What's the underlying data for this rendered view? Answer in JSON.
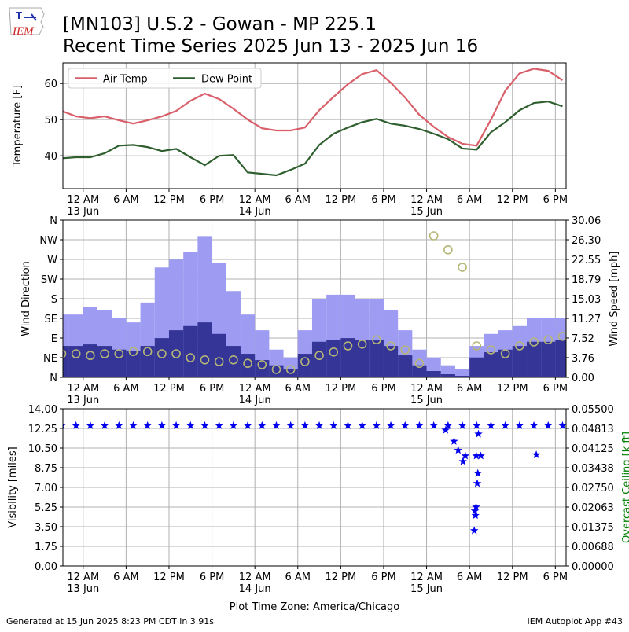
{
  "logo_text": "IEM",
  "title": [
    "[MN103] U.S.2 - Gowan - MP 225.1",
    "Recent Time Series 2025 Jun 13 - 2025 Jun 16"
  ],
  "x_axis_label": "Plot Time Zone: America/Chicago",
  "footer_left": "Generated at 15 Jun 2025 8:23 PM CDT in 3.91s",
  "footer_right": "IEM Autoplot App #43",
  "chart_data": [
    {
      "type": "line",
      "ylabel": "Temperature [F]",
      "grid": true,
      "legend": "upper left",
      "xlim": [
        "2025-06-12 21:10",
        "2025-06-15 19:30"
      ],
      "xticks": [
        {
          "value": "2025-06-13 00:00",
          "label": "12 AM\n13 Jun"
        },
        {
          "value": "2025-06-13 06:00",
          "label": "6 AM"
        },
        {
          "value": "2025-06-13 12:00",
          "label": "12 PM"
        },
        {
          "value": "2025-06-13 18:00",
          "label": "6 PM"
        },
        {
          "value": "2025-06-14 00:00",
          "label": "12 AM\n14 Jun"
        },
        {
          "value": "2025-06-14 06:00",
          "label": "6 AM"
        },
        {
          "value": "2025-06-14 12:00",
          "label": "12 PM"
        },
        {
          "value": "2025-06-14 18:00",
          "label": "6 PM"
        },
        {
          "value": "2025-06-15 00:00",
          "label": "12 AM\n15 Jun"
        },
        {
          "value": "2025-06-15 06:00",
          "label": "6 AM"
        },
        {
          "value": "2025-06-15 12:00",
          "label": "12 PM"
        },
        {
          "value": "2025-06-15 18:00",
          "label": "6 PM"
        }
      ],
      "ylim": [
        30.9,
        65.7
      ],
      "yticks": [
        40,
        50,
        60
      ],
      "x": [
        "2025-06-12 21:00",
        "2025-06-12 23:00",
        "2025-06-13 01:00",
        "2025-06-13 03:00",
        "2025-06-13 05:00",
        "2025-06-13 07:00",
        "2025-06-13 09:00",
        "2025-06-13 11:00",
        "2025-06-13 13:00",
        "2025-06-13 15:00",
        "2025-06-13 17:00",
        "2025-06-13 19:00",
        "2025-06-13 21:00",
        "2025-06-13 23:00",
        "2025-06-14 01:00",
        "2025-06-14 03:00",
        "2025-06-14 05:00",
        "2025-06-14 07:00",
        "2025-06-14 09:00",
        "2025-06-14 11:00",
        "2025-06-14 13:00",
        "2025-06-14 15:00",
        "2025-06-14 17:00",
        "2025-06-14 19:00",
        "2025-06-14 21:00",
        "2025-06-14 23:00",
        "2025-06-15 01:00",
        "2025-06-15 03:00",
        "2025-06-15 05:00",
        "2025-06-15 07:00",
        "2025-06-15 09:00",
        "2025-06-15 11:00",
        "2025-06-15 13:00",
        "2025-06-15 15:00",
        "2025-06-15 17:00",
        "2025-06-15 19:00"
      ],
      "series": [
        {
          "name": "Air Temp",
          "color": "#d9606a",
          "values": [
            52.4,
            50.9,
            50.4,
            50.9,
            49.8,
            48.9,
            49.8,
            50.9,
            52.4,
            55.2,
            57.2,
            55.7,
            53.0,
            50.0,
            47.6,
            47.0,
            47.0,
            47.8,
            52.6,
            56.3,
            59.8,
            62.6,
            63.7,
            60.2,
            56.1,
            51.3,
            48.0,
            45.2,
            43.3,
            42.8,
            50.0,
            58.0,
            62.8,
            64.1,
            63.5,
            60.9
          ]
        },
        {
          "name": "Dew Point",
          "color": "#2f5f2f",
          "values": [
            39.3,
            39.6,
            39.6,
            40.7,
            42.8,
            43.0,
            42.4,
            41.3,
            41.9,
            39.6,
            37.4,
            40.0,
            40.2,
            35.4,
            35.0,
            34.6,
            36.1,
            37.8,
            43.0,
            46.1,
            47.8,
            49.3,
            50.2,
            48.9,
            48.3,
            47.4,
            46.1,
            44.6,
            42.0,
            41.7,
            46.5,
            49.3,
            52.6,
            54.6,
            55.0,
            53.7
          ]
        }
      ]
    },
    {
      "type": "bar",
      "ylabel": "Wind Direction",
      "y2label": "Wind Speed [mph]",
      "grid": true,
      "xlim": [
        "2025-06-12 21:10",
        "2025-06-15 19:30"
      ],
      "xticks": [
        {
          "value": "2025-06-13 00:00",
          "label": "12 AM\n13 Jun"
        },
        {
          "value": "2025-06-13 06:00",
          "label": "6 AM"
        },
        {
          "value": "2025-06-13 12:00",
          "label": "12 PM"
        },
        {
          "value": "2025-06-13 18:00",
          "label": "6 PM"
        },
        {
          "value": "2025-06-14 00:00",
          "label": "12 AM\n14 Jun"
        },
        {
          "value": "2025-06-14 06:00",
          "label": "6 AM"
        },
        {
          "value": "2025-06-14 12:00",
          "label": "12 PM"
        },
        {
          "value": "2025-06-14 18:00",
          "label": "6 PM"
        },
        {
          "value": "2025-06-15 00:00",
          "label": "12 AM\n15 Jun"
        },
        {
          "value": "2025-06-15 06:00",
          "label": "6 AM"
        },
        {
          "value": "2025-06-15 12:00",
          "label": "12 PM"
        },
        {
          "value": "2025-06-15 18:00",
          "label": "6 PM"
        }
      ],
      "ylim": [
        0,
        360
      ],
      "yticks": [
        {
          "value": 0,
          "label": "N"
        },
        {
          "value": 45,
          "label": "NE"
        },
        {
          "value": 90,
          "label": "E"
        },
        {
          "value": 135,
          "label": "SE"
        },
        {
          "value": 180,
          "label": "S"
        },
        {
          "value": 225,
          "label": "SW"
        },
        {
          "value": 270,
          "label": "W"
        },
        {
          "value": 315,
          "label": "NW"
        },
        {
          "value": 360,
          "label": "N"
        }
      ],
      "y2lim": [
        0,
        30.06
      ],
      "y2ticks": [
        {
          "value": 0,
          "label": "0.00"
        },
        3.76,
        7.52,
        11.27,
        15.03,
        18.79,
        22.55,
        {
          "value": 26.3,
          "label": "26.30"
        },
        30.06
      ],
      "x": [
        "2025-06-12 21:00",
        "2025-06-12 23:00",
        "2025-06-13 01:00",
        "2025-06-13 03:00",
        "2025-06-13 05:00",
        "2025-06-13 07:00",
        "2025-06-13 09:00",
        "2025-06-13 11:00",
        "2025-06-13 13:00",
        "2025-06-13 15:00",
        "2025-06-13 17:00",
        "2025-06-13 19:00",
        "2025-06-13 21:00",
        "2025-06-13 23:00",
        "2025-06-14 01:00",
        "2025-06-14 03:00",
        "2025-06-14 05:00",
        "2025-06-14 07:00",
        "2025-06-14 09:00",
        "2025-06-14 11:00",
        "2025-06-14 13:00",
        "2025-06-14 15:00",
        "2025-06-14 17:00",
        "2025-06-14 19:00",
        "2025-06-14 21:00",
        "2025-06-14 23:00",
        "2025-06-15 01:00",
        "2025-06-15 03:00",
        "2025-06-15 05:00",
        "2025-06-15 07:00",
        "2025-06-15 09:00",
        "2025-06-15 11:00",
        "2025-06-15 13:00",
        "2025-06-15 15:00",
        "2025-06-15 17:00",
        "2025-06-15 19:00"
      ],
      "series": [
        {
          "type": "bar",
          "axis": "y2",
          "color": "#9d9cf2",
          "values": [
            12.0,
            12.0,
            13.5,
            12.8,
            11.3,
            10.5,
            14.3,
            21.0,
            22.5,
            24.0,
            27.0,
            21.8,
            16.5,
            12.0,
            9.0,
            5.3,
            3.8,
            9.0,
            15.0,
            15.8,
            15.8,
            15.0,
            15.0,
            12.8,
            9.0,
            5.3,
            3.8,
            2.3,
            1.5,
            6.0,
            8.3,
            9.0,
            9.8,
            11.3,
            11.3,
            11.3
          ]
        },
        {
          "type": "bar",
          "axis": "y2",
          "color": "#343596",
          "values": [
            6.0,
            6.0,
            6.3,
            6.0,
            5.3,
            5.0,
            6.0,
            7.5,
            9.0,
            9.8,
            10.5,
            8.3,
            6.0,
            4.5,
            3.3,
            2.3,
            1.5,
            4.5,
            6.8,
            7.2,
            7.5,
            7.2,
            7.2,
            6.0,
            4.2,
            2.3,
            1.2,
            0.6,
            0.3,
            3.8,
            4.8,
            5.3,
            6.0,
            6.8,
            6.8,
            7.2
          ]
        },
        {
          "type": "scatter",
          "color": "#b5b676",
          "values": [
            54,
            54,
            50,
            54,
            54,
            59,
            59,
            54,
            54,
            45,
            40,
            36,
            40,
            32,
            29,
            18,
            18,
            36,
            50,
            58,
            72,
            76,
            86,
            72,
            63,
            32,
            324,
            292,
            252,
            72,
            63,
            54,
            72,
            81,
            86,
            94
          ]
        }
      ]
    },
    {
      "type": "scatter",
      "marker": "star",
      "color": "#0000ee",
      "ylabel": "Visibility [miles]",
      "y2label": "Overcast Ceiling [k ft]",
      "y2label_color": "#008000",
      "grid": true,
      "xlim": [
        "2025-06-12 21:10",
        "2025-06-15 19:30"
      ],
      "xticks": [
        {
          "value": "2025-06-13 00:00",
          "label": "12 AM\n13 Jun"
        },
        {
          "value": "2025-06-13 06:00",
          "label": "6 AM"
        },
        {
          "value": "2025-06-13 12:00",
          "label": "12 PM"
        },
        {
          "value": "2025-06-13 18:00",
          "label": "6 PM"
        },
        {
          "value": "2025-06-14 00:00",
          "label": "12 AM\n14 Jun"
        },
        {
          "value": "2025-06-14 06:00",
          "label": "6 AM"
        },
        {
          "value": "2025-06-14 12:00",
          "label": "12 PM"
        },
        {
          "value": "2025-06-14 18:00",
          "label": "6 PM"
        },
        {
          "value": "2025-06-15 00:00",
          "label": "12 AM\n15 Jun"
        },
        {
          "value": "2025-06-15 06:00",
          "label": "6 AM"
        },
        {
          "value": "2025-06-15 12:00",
          "label": "12 PM"
        },
        {
          "value": "2025-06-15 18:00",
          "label": "6 PM"
        }
      ],
      "ylim": [
        0,
        14
      ],
      "yticks": [
        {
          "value": 0,
          "label": "0.00"
        },
        1.75,
        {
          "value": 3.5,
          "label": "3.50"
        },
        5.25,
        {
          "value": 7,
          "label": "7.00"
        },
        8.75,
        {
          "value": 10.5,
          "label": "10.50"
        },
        12.25,
        {
          "value": 14,
          "label": "14.00"
        }
      ],
      "y2lim": [
        0,
        0.055
      ],
      "y2ticks": [
        {
          "value": 0,
          "label": "0.00000"
        },
        {
          "value": 0.00688,
          "label": "0.00688"
        },
        {
          "value": 0.01375,
          "label": "0.01375"
        },
        {
          "value": 0.02063,
          "label": "0.02063"
        },
        {
          "value": 0.0275,
          "label": "0.02750"
        },
        {
          "value": 0.03438,
          "label": "0.03438"
        },
        {
          "value": 0.04125,
          "label": "0.04125"
        },
        {
          "value": 0.04813,
          "label": "0.04813"
        },
        {
          "value": 0.055,
          "label": "0.05500"
        }
      ],
      "x": [
        "2025-06-12 21:00",
        "2025-06-12 23:00",
        "2025-06-13 01:00",
        "2025-06-13 03:00",
        "2025-06-13 05:00",
        "2025-06-13 07:00",
        "2025-06-13 09:00",
        "2025-06-13 11:00",
        "2025-06-13 13:00",
        "2025-06-13 15:00",
        "2025-06-13 17:00",
        "2025-06-13 19:00",
        "2025-06-13 21:00",
        "2025-06-13 23:00",
        "2025-06-14 01:00",
        "2025-06-14 03:00",
        "2025-06-14 05:00",
        "2025-06-14 07:00",
        "2025-06-14 09:00",
        "2025-06-14 11:00",
        "2025-06-14 13:00",
        "2025-06-14 15:00",
        "2025-06-14 17:00",
        "2025-06-14 19:00",
        "2025-06-14 21:00",
        "2025-06-14 23:00",
        "2025-06-15 01:00",
        "2025-06-15 03:00",
        "2025-06-15 05:00",
        "2025-06-15 07:00",
        "2025-06-15 09:00",
        "2025-06-15 11:00",
        "2025-06-15 13:00",
        "2025-06-15 15:00",
        "2025-06-15 17:00",
        "2025-06-15 19:00",
        "2025-06-15 02:40",
        "2025-06-15 03:50",
        "2025-06-15 04:25",
        "2025-06-15 05:05",
        "2025-06-15 05:25",
        "2025-06-15 06:40",
        "2025-06-15 06:45",
        "2025-06-15 06:50",
        "2025-06-15 06:55",
        "2025-06-15 06:57",
        "2025-06-15 07:05",
        "2025-06-15 07:10",
        "2025-06-15 07:15",
        "2025-06-15 07:35",
        "2025-06-15 15:20"
      ],
      "values": [
        12.5,
        12.5,
        12.5,
        12.5,
        12.5,
        12.5,
        12.5,
        12.5,
        12.5,
        12.5,
        12.5,
        12.5,
        12.5,
        12.5,
        12.5,
        12.5,
        12.5,
        12.5,
        12.5,
        12.5,
        12.5,
        12.5,
        12.5,
        12.5,
        12.5,
        12.5,
        12.5,
        12.5,
        12.5,
        12.5,
        12.5,
        12.5,
        12.5,
        12.5,
        12.5,
        12.5,
        12.1,
        11.1,
        10.3,
        9.3,
        9.8,
        3.15,
        4.9,
        4.5,
        5.25,
        9.8,
        7.35,
        8.25,
        11.75,
        9.8,
        9.9
      ]
    }
  ]
}
